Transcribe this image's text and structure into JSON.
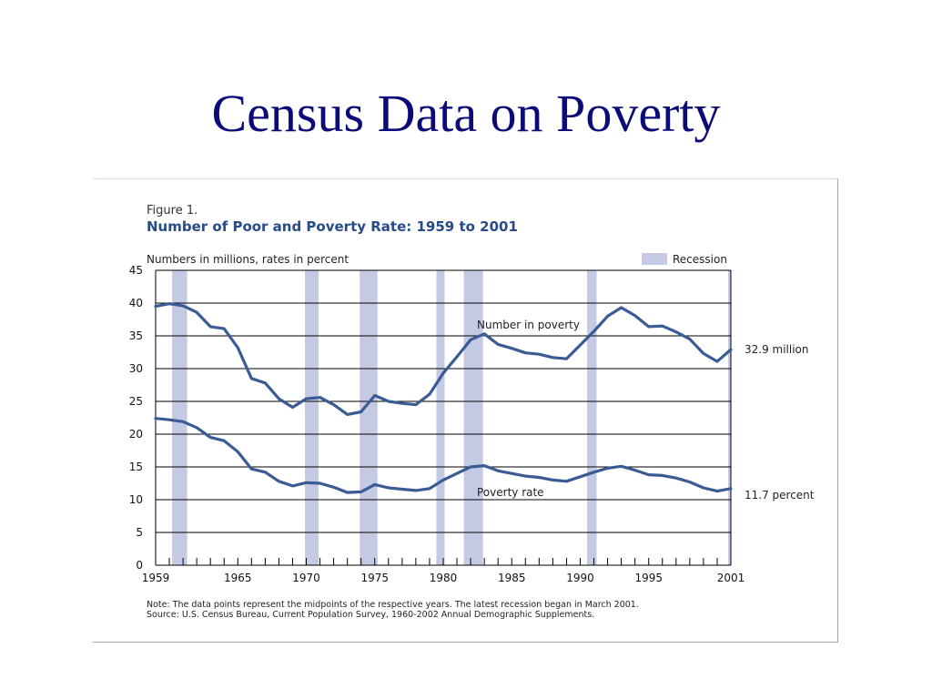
{
  "slide": {
    "title": "Census Data on Poverty"
  },
  "chart_data": {
    "type": "line",
    "figure_label": "Figure 1.",
    "title": "Number of Poor and Poverty Rate:  1959 to 2001",
    "units_label": "Numbers in millions, rates in percent",
    "legend": {
      "label": "Recession",
      "color": "#c4cae3",
      "placement": "top-right"
    },
    "x_ticks": [
      1959,
      1965,
      1970,
      1975,
      1980,
      1985,
      1990,
      1995,
      2001
    ],
    "y_ticks": [
      0,
      5,
      10,
      15,
      20,
      25,
      30,
      35,
      40,
      45
    ],
    "xlim": [
      1959,
      2001
    ],
    "ylim": [
      0,
      45
    ],
    "grid": "horizontal",
    "line_color": "#3b5b94",
    "recessions": [
      [
        1960.2,
        1961.3
      ],
      [
        1969.9,
        1970.9
      ],
      [
        1973.9,
        1975.2
      ],
      [
        1979.5,
        1980.1
      ],
      [
        1981.5,
        1982.9
      ],
      [
        1990.5,
        1991.2
      ],
      [
        2000.8,
        2001
      ]
    ],
    "series": [
      {
        "name": "Number in poverty",
        "end_label": "32.9 million",
        "x": [
          1959,
          1960,
          1961,
          1962,
          1963,
          1964,
          1965,
          1966,
          1967,
          1968,
          1969,
          1970,
          1971,
          1972,
          1973,
          1974,
          1975,
          1976,
          1977,
          1978,
          1979,
          1980,
          1981,
          1982,
          1983,
          1984,
          1985,
          1986,
          1987,
          1988,
          1989,
          1990,
          1991,
          1992,
          1993,
          1994,
          1995,
          1996,
          1997,
          1998,
          1999,
          2000,
          2001
        ],
        "values": [
          39.5,
          39.9,
          39.6,
          38.6,
          36.4,
          36.1,
          33.2,
          28.5,
          27.8,
          25.4,
          24.1,
          25.4,
          25.6,
          24.5,
          23.0,
          23.4,
          25.9,
          25.0,
          24.7,
          24.5,
          26.1,
          29.3,
          31.8,
          34.4,
          35.3,
          33.7,
          33.1,
          32.4,
          32.2,
          31.7,
          31.5,
          33.6,
          35.7,
          38.0,
          39.3,
          38.1,
          36.4,
          36.5,
          35.6,
          34.5,
          32.3,
          31.1,
          32.9
        ]
      },
      {
        "name": "Poverty rate",
        "end_label": "11.7 percent",
        "x": [
          1959,
          1960,
          1961,
          1962,
          1963,
          1964,
          1965,
          1966,
          1967,
          1968,
          1969,
          1970,
          1971,
          1972,
          1973,
          1974,
          1975,
          1976,
          1977,
          1978,
          1979,
          1980,
          1981,
          1982,
          1983,
          1984,
          1985,
          1986,
          1987,
          1988,
          1989,
          1990,
          1991,
          1992,
          1993,
          1994,
          1995,
          1996,
          1997,
          1998,
          1999,
          2000,
          2001
        ],
        "values": [
          22.4,
          22.2,
          21.9,
          21.0,
          19.5,
          19.0,
          17.3,
          14.7,
          14.2,
          12.8,
          12.1,
          12.6,
          12.5,
          11.9,
          11.1,
          11.2,
          12.3,
          11.8,
          11.6,
          11.4,
          11.7,
          13.0,
          14.0,
          15.0,
          15.2,
          14.4,
          14.0,
          13.6,
          13.4,
          13.0,
          12.8,
          13.5,
          14.2,
          14.8,
          15.1,
          14.5,
          13.8,
          13.7,
          13.3,
          12.7,
          11.8,
          11.3,
          11.7
        ]
      }
    ],
    "note": "Note:  The data points represent the midpoints of the respective years.  The latest recession began in March 2001.",
    "source": "Source:  U.S. Census Bureau, Current Population Survey, 1960-2002 Annual Demographic Supplements."
  }
}
